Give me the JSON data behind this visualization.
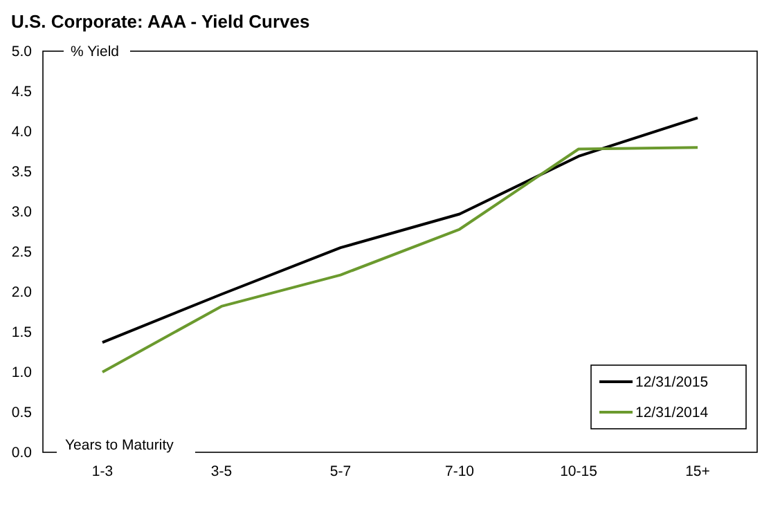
{
  "chart_data": {
    "type": "line",
    "title": "U.S. Corporate: AAA  - Yield Curves",
    "ylabel": "% Yield",
    "xlabel": "Years to Maturity",
    "categories": [
      "1-3",
      "3-5",
      "5-7",
      "7-10",
      "10-15",
      "15+"
    ],
    "series": [
      {
        "name": "12/31/2015",
        "color": "#000000",
        "values": [
          1.37,
          1.97,
          2.55,
          2.97,
          3.69,
          4.17
        ]
      },
      {
        "name": "12/31/2014",
        "color": "#6b9a2e",
        "values": [
          1.0,
          1.82,
          2.21,
          2.78,
          3.78,
          3.8
        ]
      }
    ],
    "ylim": [
      0,
      5
    ],
    "yticks": [
      {
        "value": 0,
        "label": "0.0"
      },
      {
        "value": 0.5,
        "label": "0.5"
      },
      {
        "value": 1,
        "label": "1.0"
      },
      {
        "value": 1.5,
        "label": "1.5"
      },
      {
        "value": 2,
        "label": "2.0"
      },
      {
        "value": 2.5,
        "label": "2.5"
      },
      {
        "value": 3,
        "label": "3.0"
      },
      {
        "value": 3.5,
        "label": "3.5"
      },
      {
        "value": 4,
        "label": "4.0"
      },
      {
        "value": 4.5,
        "label": "4.5"
      },
      {
        "value": 5,
        "label": "5.0"
      }
    ],
    "grid": false,
    "legend": "bottom right",
    "marker": "none",
    "line_style": "solid"
  }
}
